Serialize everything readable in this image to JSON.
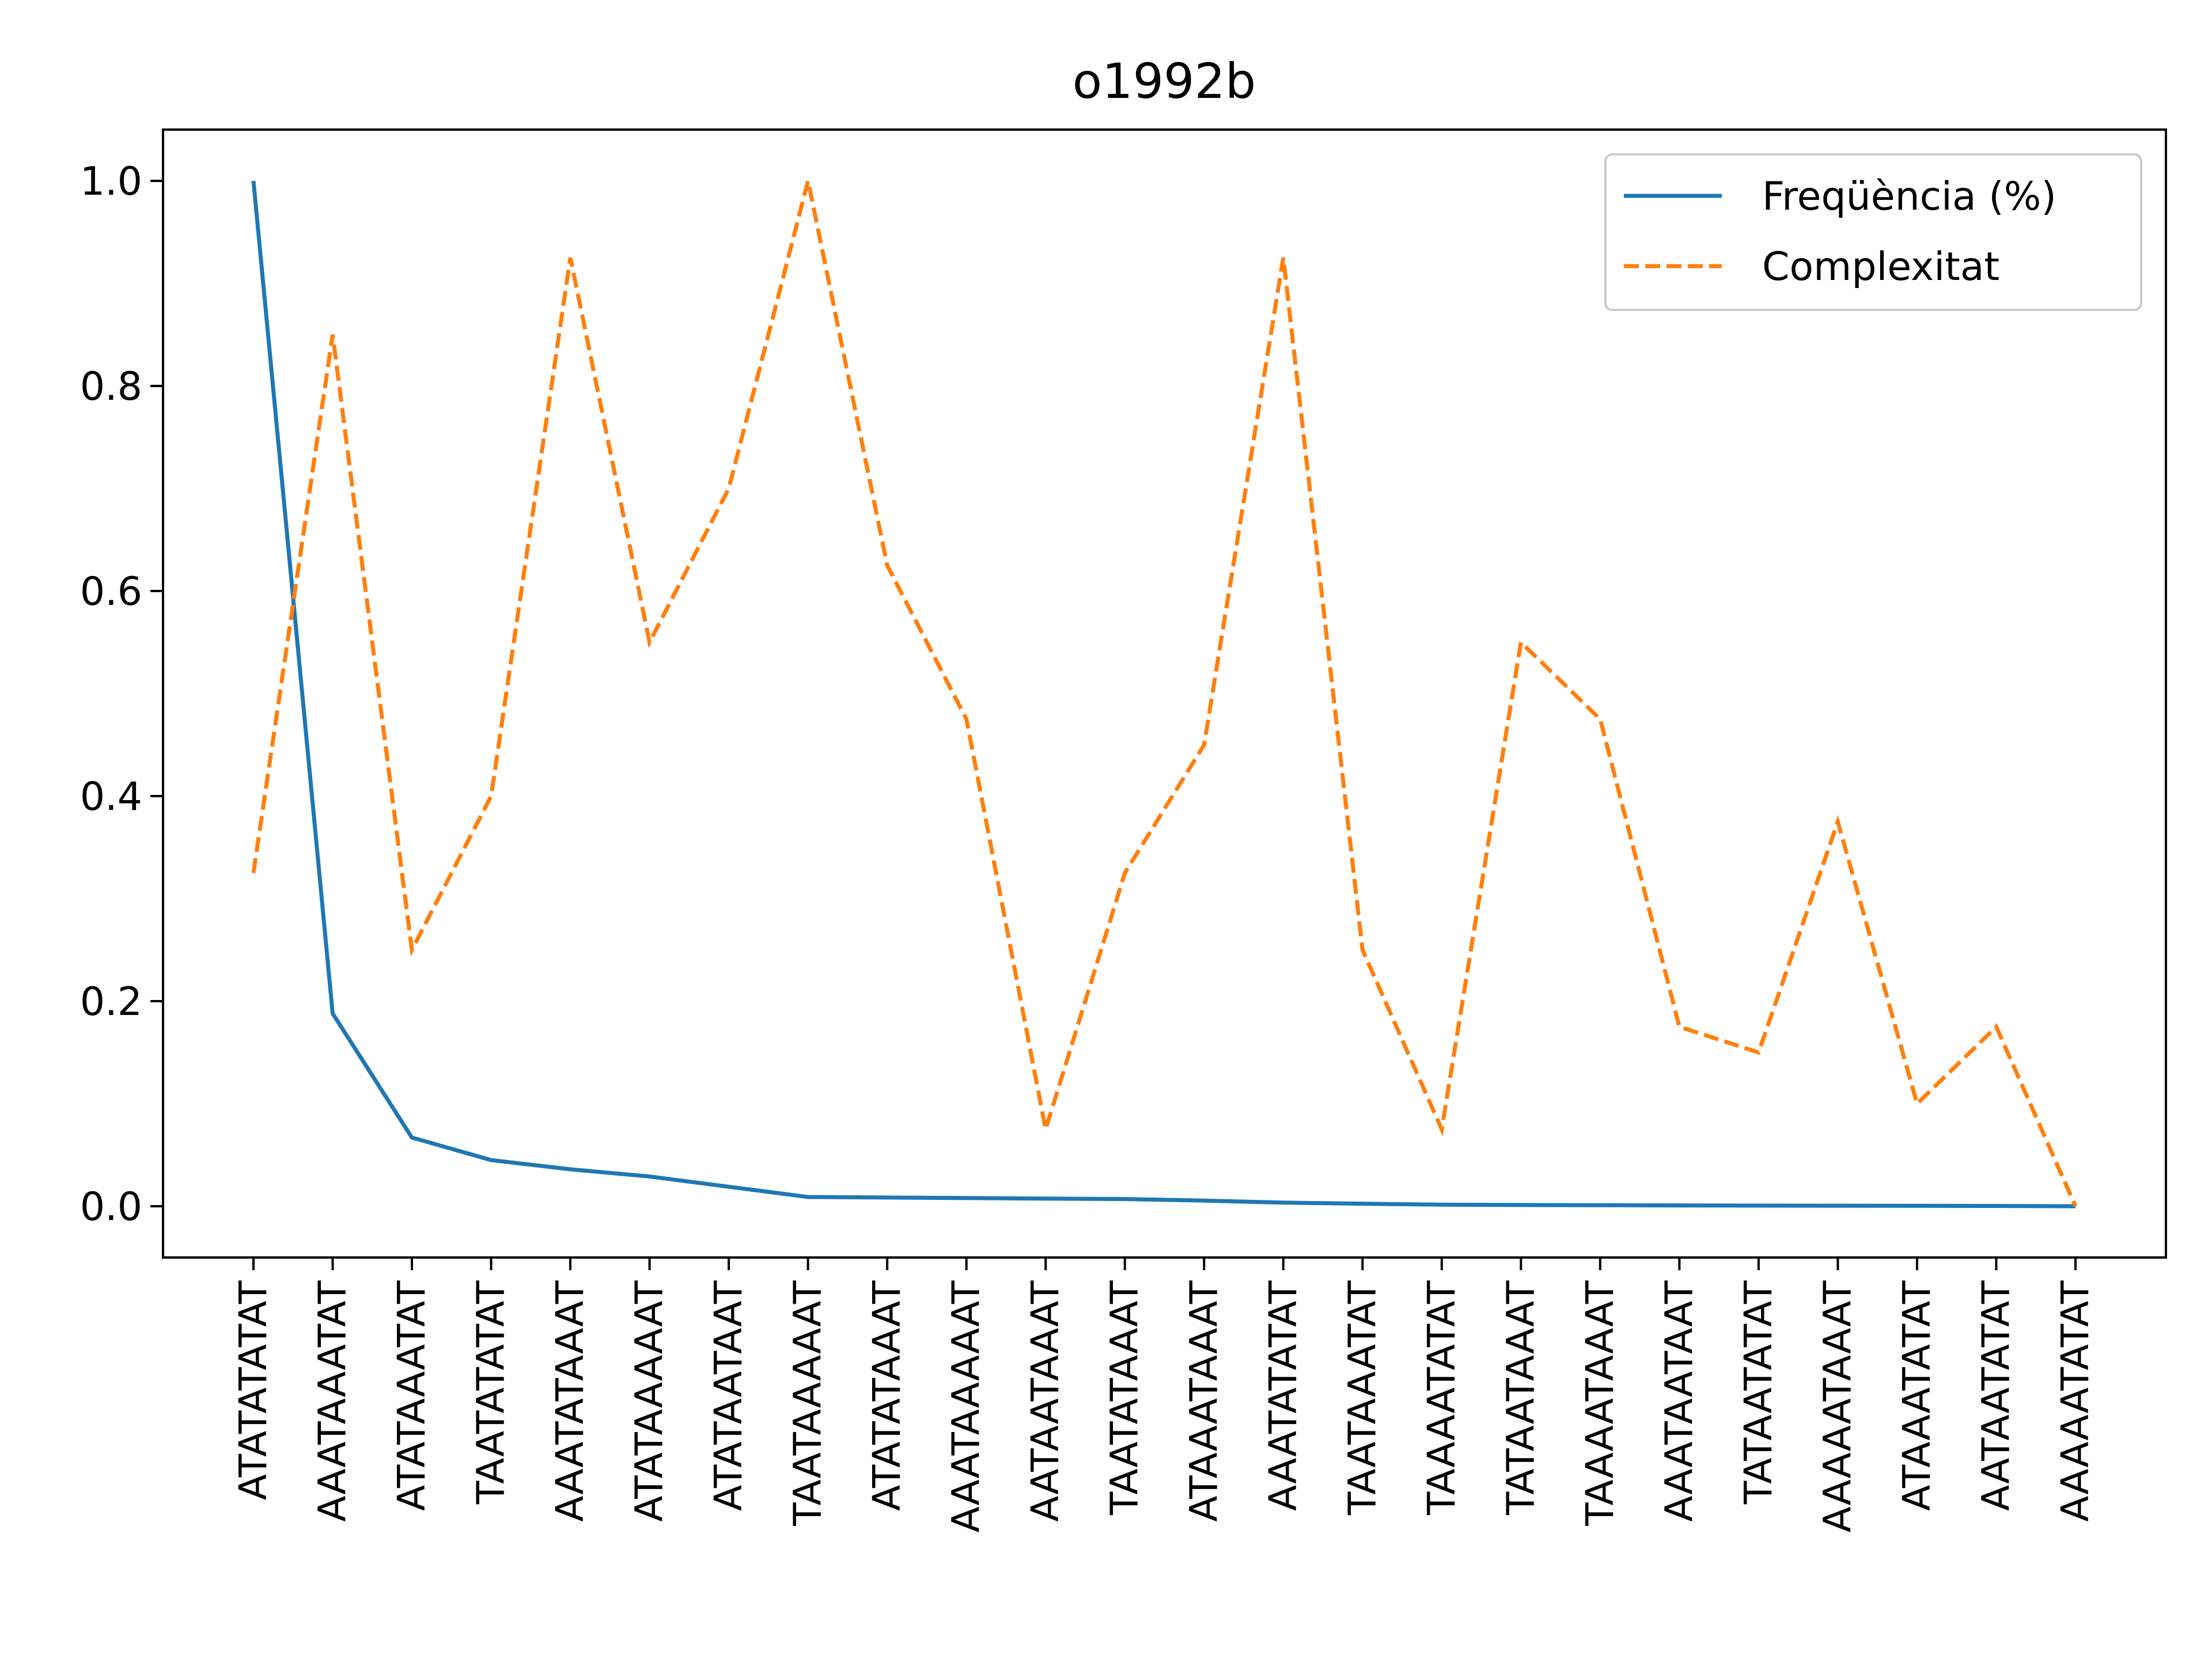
{
  "chart_data": {
    "type": "line",
    "title": "o1992b",
    "xlabel": "",
    "ylabel": "",
    "ylim": [
      -0.05,
      1.05
    ],
    "yticks": [
      "0.0",
      "0.2",
      "0.4",
      "0.6",
      "0.8",
      "1.0"
    ],
    "grid": false,
    "legend_position": "top-right",
    "categories": [
      "ATATATATAT",
      "AAATAAATAT",
      "ATATAAATAT",
      "TAATATATAT",
      "AAATATAAAT",
      "ATATAAAAAT",
      "ATATAATAAT",
      "TAATAAAAAT",
      "ATATATAAAT",
      "AAATAAAAAT",
      "AATAATAAAT",
      "TAATATAAAT",
      "ATAAATAAAT",
      "AAATATATAT",
      "TAATAAATAT",
      "TAAAATATAT",
      "TATAATAAAT",
      "TAAAATAAAT",
      "AAATAATAAT",
      "TATAATATAT",
      "AAAAATAAAT",
      "ATAAATATAT",
      "AATAATATAT",
      "AAAAATATAT"
    ],
    "series": [
      {
        "name": "Freqüència (%)",
        "color": "#1f77b4",
        "dash": "solid",
        "values": [
          1.0,
          0.188,
          0.067,
          0.045,
          0.036,
          0.029,
          0.019,
          0.009,
          0.0085,
          0.008,
          0.0075,
          0.007,
          0.0055,
          0.0035,
          0.0025,
          0.0015,
          0.0012,
          0.001,
          0.0008,
          0.0006,
          0.0005,
          0.0004,
          0.0003,
          0.0
        ]
      },
      {
        "name": "Complexitat",
        "color": "#ff7f0e",
        "dash": "dashed",
        "values": [
          0.325,
          0.85,
          0.25,
          0.4,
          0.925,
          0.55,
          0.7,
          1.0,
          0.625,
          0.475,
          0.075,
          0.325,
          0.45,
          0.925,
          0.25,
          0.075,
          0.55,
          0.475,
          0.175,
          0.15,
          0.375,
          0.1,
          0.175,
          0.0
        ]
      }
    ]
  }
}
